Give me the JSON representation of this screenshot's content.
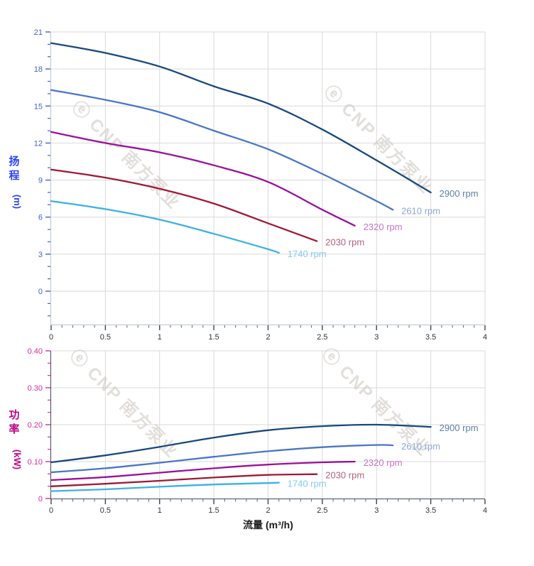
{
  "watermark": {
    "logo_glyph": "ⓔ",
    "text": "CNP 南方泵业",
    "color": "#cbc5bf"
  },
  "x_axis": {
    "title": "流量 (m³/h)",
    "title_color": "#1a1a1a",
    "tick_values": [
      0,
      0.5,
      1,
      1.5,
      2,
      2.5,
      3,
      3.5,
      4
    ],
    "tick_labels": [
      "0",
      "0.5",
      "1",
      "1.5",
      "2",
      "2.5",
      "3",
      "3.5",
      "4"
    ],
    "tick_label_color": "#333333"
  },
  "chart_data": [
    {
      "type": "line",
      "title": "",
      "xlabel": "流量 (m³/h)",
      "ylabel": "扬程 (m)",
      "ylabel_stack": [
        "扬",
        "程"
      ],
      "ylabel_unit": "(m)",
      "ylabel_color": "#2b43ef",
      "ytick_color": "#4161d2",
      "xlim": [
        0,
        4
      ],
      "ylim": [
        0,
        21
      ],
      "grid": true,
      "legend_position": "end-of-line",
      "y_tick_values": [
        0,
        3,
        6,
        9,
        12,
        15,
        18,
        21
      ],
      "y_tick_labels": [
        "0",
        "3",
        "6",
        "9",
        "12",
        "15",
        "18",
        "21"
      ],
      "series": [
        {
          "name": "2900 rpm",
          "color": "#17497e",
          "label_color": "#5b81a5",
          "x": [
            0,
            0.5,
            1,
            1.5,
            2,
            2.5,
            3,
            3.5
          ],
          "y": [
            20.1,
            19.3,
            18.2,
            16.6,
            15.2,
            13.1,
            10.6,
            8.0
          ]
        },
        {
          "name": "2610 rpm",
          "color": "#4876c6",
          "label_color": "#8ca6d9",
          "x": [
            0,
            0.5,
            1,
            1.5,
            2,
            2.5,
            3,
            3.15
          ],
          "y": [
            16.3,
            15.5,
            14.5,
            13.0,
            11.5,
            9.5,
            7.3,
            6.6
          ]
        },
        {
          "name": "2320 rpm",
          "color": "#9b109b",
          "label_color": "#c176c1",
          "x": [
            0,
            0.5,
            1,
            1.5,
            2,
            2.5,
            2.8
          ],
          "y": [
            12.9,
            12.0,
            11.25,
            10.2,
            8.85,
            6.6,
            5.3
          ]
        },
        {
          "name": "2030 rpm",
          "color": "#9e1a35",
          "label_color": "#b16379",
          "x": [
            0,
            0.5,
            1,
            1.5,
            2,
            2.45
          ],
          "y": [
            9.85,
            9.2,
            8.3,
            7.1,
            5.5,
            4.05
          ]
        },
        {
          "name": "1740 rpm",
          "color": "#3cb1e3",
          "label_color": "#86c9ee",
          "x": [
            0,
            0.5,
            1,
            1.5,
            2,
            2.1
          ],
          "y": [
            7.3,
            6.65,
            5.8,
            4.65,
            3.4,
            3.1
          ]
        }
      ]
    },
    {
      "type": "line",
      "title": "",
      "xlabel": "流量 (m³/h)",
      "ylabel": "功率 (kW)",
      "ylabel_stack": [
        "功",
        "率"
      ],
      "ylabel_unit": "(kW)",
      "ylabel_color": "#c00585",
      "ytick_color": "#cf2f9b",
      "xlim": [
        0,
        4
      ],
      "ylim": [
        0,
        0.4
      ],
      "grid": true,
      "legend_position": "end-of-line",
      "y_tick_values": [
        0,
        0.1,
        0.2,
        0.3,
        0.4
      ],
      "y_tick_labels": [
        "0",
        "0.10",
        "0.20",
        "0.30",
        "0.40"
      ],
      "series": [
        {
          "name": "2900 rpm",
          "color": "#17497e",
          "label_color": "#5b81a5",
          "x": [
            0,
            0.5,
            1,
            1.5,
            2,
            2.5,
            3,
            3.5
          ],
          "y": [
            0.098,
            0.117,
            0.14,
            0.165,
            0.185,
            0.196,
            0.2,
            0.194
          ]
        },
        {
          "name": "2610 rpm",
          "color": "#4876c6",
          "label_color": "#8ca6d9",
          "x": [
            0,
            0.5,
            1,
            1.5,
            2,
            2.5,
            3,
            3.15
          ],
          "y": [
            0.071,
            0.082,
            0.097,
            0.113,
            0.128,
            0.139,
            0.145,
            0.144
          ]
        },
        {
          "name": "2320 rpm",
          "color": "#9b109b",
          "label_color": "#c176c1",
          "x": [
            0,
            0.5,
            1,
            1.5,
            2,
            2.5,
            2.8
          ],
          "y": [
            0.05,
            0.058,
            0.07,
            0.082,
            0.092,
            0.098,
            0.1
          ]
        },
        {
          "name": "2030 rpm",
          "color": "#9e1a35",
          "label_color": "#b16379",
          "x": [
            0,
            0.5,
            1,
            1.5,
            2,
            2.45
          ],
          "y": [
            0.033,
            0.04,
            0.048,
            0.057,
            0.064,
            0.066
          ]
        },
        {
          "name": "1740 rpm",
          "color": "#3cb1e3",
          "label_color": "#86c9ee",
          "x": [
            0,
            0.5,
            1,
            1.5,
            2,
            2.1
          ],
          "y": [
            0.02,
            0.025,
            0.032,
            0.038,
            0.042,
            0.043
          ]
        }
      ]
    }
  ]
}
